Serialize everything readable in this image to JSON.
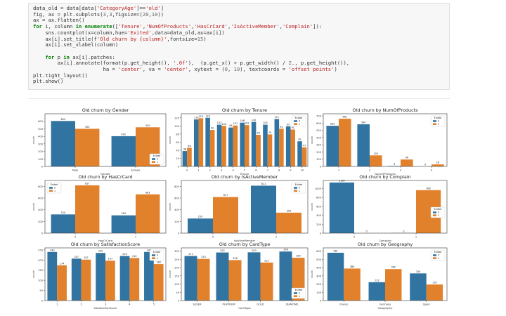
{
  "code_lines": [
    "data_old = data[data['CategoryAge']=='old']",
    "fig, ax = plt.subplots(3,3,figsize=(20,10))",
    "ax = ax.flatten()",
    "for i, column in enumerate(['Tenure','NumOfProducts','HasCrCard','IsActiveMember','Complain']):",
    "    sns.countplot(x=column,hue='Exited',data=data_old,ax=ax[i])",
    "    ax[i].set_title(f'Old churn by {column}',fontsize=15)",
    "    ax[i].set_xlabel(column)",
    "",
    "    for p in ax[i].patches:",
    "        ax[i].annotate(format(p.get_height(), '.0f'),  (p.get_x() + p.get_width() / 2., p.get_height()),",
    "                       ha = 'center', va = 'center', xytext = (0, 10), textcoords = 'offset points')",
    "plt.tight_layout()",
    "plt.show()"
  ],
  "colors": {
    "exited_0": "#3274a1",
    "exited_1": "#e1812c"
  },
  "chart_data": [
    {
      "type": "bar",
      "title": "Old churn by Gender",
      "xlabel": "Gender",
      "ylabel": "count",
      "categories": [
        "Male",
        "Female"
      ],
      "series": [
        {
          "name": "0",
          "values": [
            604,
            402
          ]
        },
        {
          "name": "1",
          "values": [
            500,
            520
          ]
        }
      ],
      "ylim": [
        0,
        700
      ],
      "yticks": [
        0,
        100,
        200,
        300,
        400,
        500,
        600
      ],
      "legend_title": "Exited",
      "legend": "lower-right"
    },
    {
      "type": "bar",
      "title": "Old churn by Tenure",
      "xlabel": "Tenure",
      "ylabel": "count",
      "categories": [
        "0",
        "1",
        "2",
        "3",
        "4",
        "5",
        "6",
        "7",
        "8",
        "9",
        "10"
      ],
      "series": [
        {
          "name": "0",
          "values": [
            38,
            116,
            120,
            103,
            96,
            108,
            110,
            103,
            117,
            99,
            62
          ]
        },
        {
          "name": "1",
          "values": [
            46,
            119,
            90,
            100,
            101,
            102,
            78,
            79,
            93,
            91,
            47
          ]
        }
      ],
      "ylim": [
        0,
        130
      ],
      "yticks": [
        0,
        20,
        40,
        60,
        80,
        100,
        120
      ],
      "legend_title": "Exited",
      "legend": "top-right"
    },
    {
      "type": "bar",
      "title": "Old churn by NumOfProducts",
      "xlabel": "NumOfProducts",
      "ylabel": "count",
      "categories": [
        "1",
        "2",
        "3",
        "4"
      ],
      "series": [
        {
          "name": "0",
          "values": [
            563,
            584,
            6,
            0
          ]
        },
        {
          "name": "1",
          "values": [
            661,
            153,
            96,
            28
          ]
        }
      ],
      "ylim": [
        0,
        730
      ],
      "yticks": [
        0,
        100,
        200,
        300,
        400,
        500,
        600,
        700
      ],
      "legend_title": "Exited",
      "legend": "top-right"
    },
    {
      "type": "bar",
      "title": "Old churn by HasCrCard",
      "xlabel": "HasCrCard",
      "ylabel": "count",
      "categories": [
        "0",
        "1"
      ],
      "series": [
        {
          "name": "0",
          "values": [
            320,
            304
          ]
        },
        {
          "name": "1",
          "values": [
            817,
            663
          ]
        }
      ],
      "ylim": [
        0,
        900
      ],
      "yticks": [
        0,
        200,
        400,
        600,
        800
      ],
      "legend_title": "Exited",
      "legend": "top-left"
    },
    {
      "type": "bar",
      "title": "Old churn by IsActiveMember",
      "xlabel": "IsActiveMember",
      "ylabel": "count",
      "categories": [
        "0",
        "1"
      ],
      "series": [
        {
          "name": "0",
          "values": [
            250,
            811
          ]
        },
        {
          "name": "1",
          "values": [
            617,
            350
          ]
        }
      ],
      "ylim": [
        0,
        900
      ],
      "yticks": [
        0,
        200,
        400,
        600,
        800
      ],
      "legend_title": "Exited",
      "legend": "top-right"
    },
    {
      "type": "bar",
      "title": "Old churn by Complain",
      "xlabel": "Complain",
      "ylabel": "count",
      "categories": [
        "0",
        "1"
      ],
      "series": [
        {
          "name": "0",
          "values": [
            1134,
            3
          ]
        },
        {
          "name": "1",
          "values": [
            0,
            963
          ]
        }
      ],
      "ylim": [
        0,
        1180
      ],
      "yticks": [
        0,
        200,
        400,
        600,
        800,
        1000
      ],
      "legend_title": "Exited",
      "legend": "center-right"
    },
    {
      "type": "bar",
      "title": "Old churn by SatisfactionScore",
      "xlabel": "SatisfactionScore",
      "ylabel": "count",
      "categories": [
        "1",
        "2",
        "3",
        "4",
        "5"
      ],
      "series": [
        {
          "name": "0",
          "values": [
            240,
            207,
            235,
            220,
            240
          ]
        },
        {
          "name": "1",
          "values": [
            174,
            202,
            197,
            210,
            180
          ]
        }
      ],
      "ylim": [
        0,
        260
      ],
      "yticks": [
        0,
        50,
        100,
        150,
        200,
        250
      ],
      "legend_title": "Exited",
      "legend": "top-right"
    },
    {
      "type": "bar",
      "title": "Old churn by CardType",
      "xlabel": "CardType",
      "ylabel": "count",
      "categories": [
        "SILVER",
        "PLATINUM",
        "GOLD",
        "DIAMOND"
      ],
      "series": [
        {
          "name": "0",
          "values": [
            271,
            292,
            293,
            298
          ]
        },
        {
          "name": "1",
          "values": [
            253,
            246,
            231,
            260
          ]
        }
      ],
      "ylim": [
        0,
        320
      ],
      "yticks": [
        0,
        50,
        100,
        150,
        200,
        250,
        300
      ],
      "legend_title": "Exited",
      "legend": "lower-right"
    },
    {
      "type": "bar",
      "title": "Old churn by Geography",
      "xlabel": "Geography",
      "ylabel": "count",
      "categories": [
        "France",
        "Germany",
        "Spain"
      ],
      "series": [
        {
          "name": "0",
          "values": [
            581,
            223,
            330
          ]
        },
        {
          "name": "1",
          "values": [
            389,
            382,
            195
          ]
        }
      ],
      "ylim": [
        0,
        640
      ],
      "yticks": [
        0,
        100,
        200,
        300,
        400,
        500,
        600
      ],
      "legend_title": "Exited",
      "legend": "top-right"
    }
  ]
}
